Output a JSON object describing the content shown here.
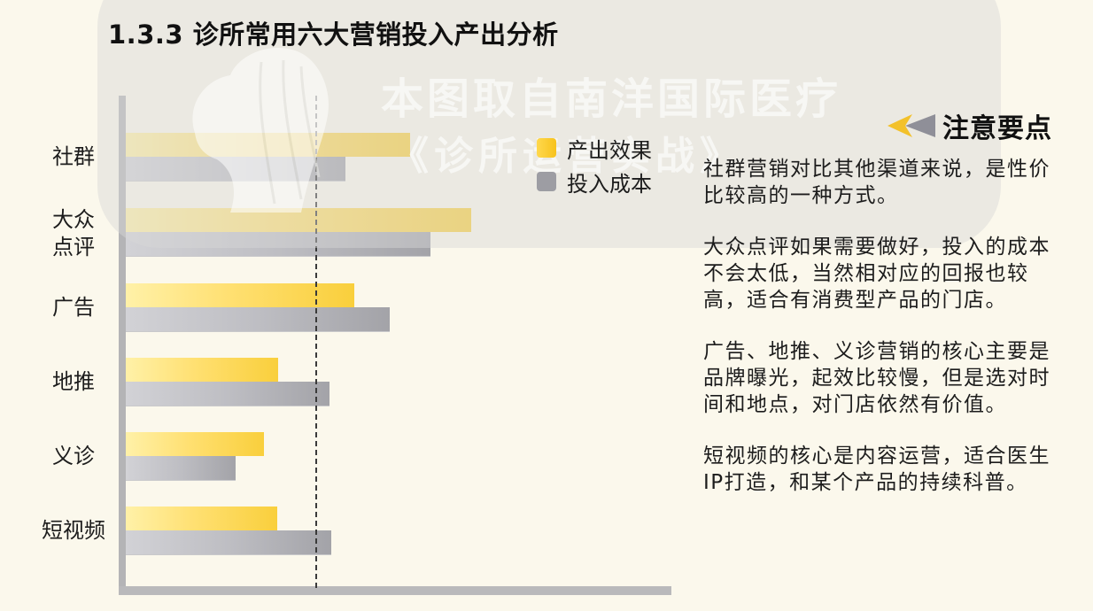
{
  "title": "1.3.3 诊所常用六大营销投入产出分析",
  "watermark": {
    "line1": "本图取自南洋国际医疗",
    "line2": "《诊所运营实战》"
  },
  "legend": {
    "items": [
      {
        "label": "产出效果",
        "color": "#f9cf3c"
      },
      {
        "label": "投入成本",
        "color": "#a3a3a8"
      }
    ]
  },
  "notes": {
    "header": "注意要点",
    "header_icon": "double-arrow-left-icon",
    "items": [
      "社群营销对比其他渠道来说，是性价比较高的一种方式。",
      "大众点评如果需要做好，投入的成本不会太低，当然相对应的回报也较高，适合有消费型产品的门店。",
      "广告、地推、义诊营销的核心主要是品牌曝光，起效比较慢，但是选对时间和地点，对门店依然有价值。",
      "短视频的核心是内容运营，适合医生IP打造，和某个产品的持续科普。"
    ]
  },
  "categories_display": [
    {
      "line1": "社群",
      "line2": ""
    },
    {
      "line1": "大众",
      "line2": "点评"
    },
    {
      "line1": "广告",
      "line2": ""
    },
    {
      "line1": "地推",
      "line2": ""
    },
    {
      "line1": "义诊",
      "line2": ""
    },
    {
      "line1": "短视频",
      "line2": ""
    }
  ],
  "chart_data": {
    "type": "bar",
    "orientation": "horizontal",
    "title": "1.3.3 诊所常用六大营销投入产出分析",
    "categories": [
      "社群",
      "大众点评",
      "广告",
      "地推",
      "义诊",
      "短视频"
    ],
    "series": [
      {
        "name": "产出效果",
        "color": "#f9cf3c",
        "values": [
          321,
          390,
          258,
          172,
          156,
          171
        ]
      },
      {
        "name": "投入成本",
        "color": "#a3a3a8",
        "values": [
          248,
          344,
          298,
          230,
          124,
          232
        ]
      }
    ],
    "value_units": "relative (pixel length, no numeric axis shown)",
    "reference_line": {
      "style": "dashed",
      "value": 215
    },
    "xlim": [
      0,
      616
    ],
    "xlabel": "",
    "ylabel": "",
    "grid": false,
    "tick_labels_shown": false,
    "legend_position": "top-right inside plot"
  }
}
